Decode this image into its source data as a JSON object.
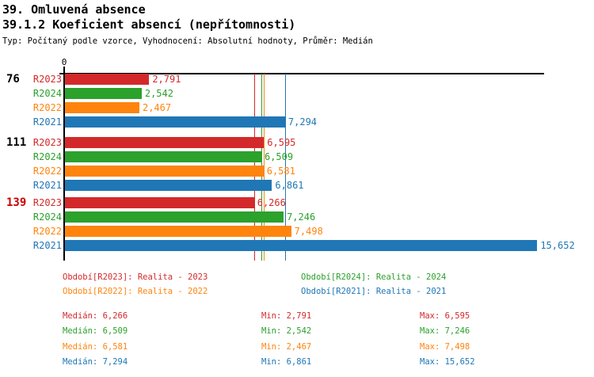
{
  "header": {
    "title": "39. Omluvená absence",
    "subtitle": "39.1.2 Koeficient absencí (nepřítomnosti)",
    "meta": "Typ: Počítaný podle vzorce, Vyhodnocení: Absolutní hodnoty, Průměr: Medián"
  },
  "colors": {
    "r2023": "#d4292a",
    "r2024": "#2ca12c",
    "r2022": "#ff840e",
    "r2021": "#2077b5",
    "axis": "#000000",
    "highlight": "#cc0000",
    "text": "#000000"
  },
  "chart_data": {
    "type": "bar",
    "orientation": "horizontal",
    "value_axis": {
      "zero_label": "0",
      "min": 0,
      "max": 15900
    },
    "series_order": [
      "R2023",
      "R2024",
      "R2022",
      "R2021"
    ],
    "groups": [
      {
        "label": "76",
        "highlighted": false,
        "bars": [
          {
            "series": "R2023",
            "value": 2791,
            "label": "2,791"
          },
          {
            "series": "R2024",
            "value": 2542,
            "label": "2,542"
          },
          {
            "series": "R2022",
            "value": 2467,
            "label": "2,467"
          },
          {
            "series": "R2021",
            "value": 7294,
            "label": "7,294"
          }
        ]
      },
      {
        "label": "111",
        "highlighted": false,
        "bars": [
          {
            "series": "R2023",
            "value": 6595,
            "label": "6,595"
          },
          {
            "series": "R2024",
            "value": 6509,
            "label": "6,509"
          },
          {
            "series": "R2022",
            "value": 6581,
            "label": "6,581"
          },
          {
            "series": "R2021",
            "value": 6861,
            "label": "6,861"
          }
        ]
      },
      {
        "label": "139",
        "highlighted": true,
        "bars": [
          {
            "series": "R2023",
            "value": 6266,
            "label": "6,266"
          },
          {
            "series": "R2024",
            "value": 7246,
            "label": "7,246"
          },
          {
            "series": "R2022",
            "value": 7498,
            "label": "7,498"
          },
          {
            "series": "R2021",
            "value": 15652,
            "label": "15,652"
          }
        ]
      }
    ],
    "median_lines": [
      {
        "series": "R2023",
        "value": 6266
      },
      {
        "series": "R2024",
        "value": 6509
      },
      {
        "series": "R2022",
        "value": 6581
      },
      {
        "series": "R2021",
        "value": 7294
      }
    ]
  },
  "legend": [
    {
      "series": "R2023",
      "text": "Období[R2023]: Realita - 2023"
    },
    {
      "series": "R2024",
      "text": "Období[R2024]: Realita - 2024"
    },
    {
      "series": "R2022",
      "text": "Období[R2022]: Realita - 2022"
    },
    {
      "series": "R2021",
      "text": "Období[R2021]: Realita - 2021"
    }
  ],
  "stats": {
    "labels": {
      "median": "Medián",
      "min": "Min",
      "max": "Max"
    },
    "rows": [
      {
        "series": "R2023",
        "median": "6,266",
        "min": "2,791",
        "max": "6,595"
      },
      {
        "series": "R2024",
        "median": "6,509",
        "min": "2,542",
        "max": "7,246"
      },
      {
        "series": "R2022",
        "median": "6,581",
        "min": "2,467",
        "max": "7,498"
      },
      {
        "series": "R2021",
        "median": "7,294",
        "min": "6,861",
        "max": "15,652"
      }
    ]
  }
}
